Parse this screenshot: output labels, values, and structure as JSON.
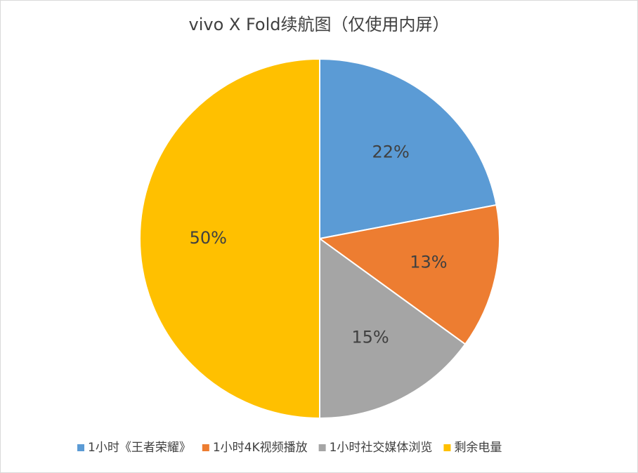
{
  "chart_data": {
    "type": "pie",
    "title": "vivo X Fold续航图（仅使用内屏）",
    "categories": [
      "1小时《王者荣耀》",
      "1小时4K视频播放",
      "1小时社交媒体浏览",
      "剩余电量"
    ],
    "values": [
      22,
      13,
      15,
      50
    ],
    "value_labels": [
      "22%",
      "13%",
      "15%",
      "50%"
    ],
    "colors": [
      "#5b9bd5",
      "#ed7d31",
      "#a5a5a5",
      "#ffc000"
    ],
    "legend": "bottom"
  }
}
